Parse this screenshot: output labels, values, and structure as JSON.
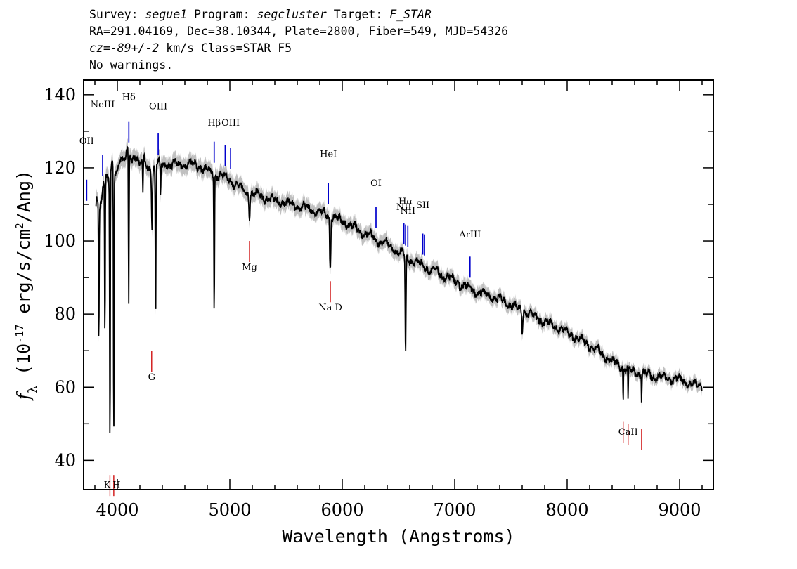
{
  "header": {
    "line1": {
      "survey_label": "Survey:",
      "survey": "segue1",
      "program_label": "Program:",
      "program": "segcluster",
      "target_label": "Target:",
      "target": "F_STAR"
    },
    "line2": "RA=291.04169, Dec=38.10344, Plate=2800, Fiber=549, MJD=54326",
    "line3": {
      "cz_label": "cz=",
      "cz_value": "-89+/-2",
      "rest": " km/s Class=STAR F5"
    },
    "line4": "No warnings."
  },
  "chart_data": {
    "type": "line",
    "xlabel": "Wavelength (Angstroms)",
    "ylabel": "f_λ (10^-17 erg/s/cm²/Ang)",
    "xlim": [
      3700,
      9300
    ],
    "ylim": [
      32,
      144
    ],
    "x_ticks": [
      4000,
      5000,
      6000,
      7000,
      8000,
      9000
    ],
    "y_ticks": [
      40,
      60,
      80,
      100,
      120,
      140
    ],
    "x_minor_step": 200,
    "y_minor_step": 10,
    "grid": false,
    "series": [
      {
        "style": "spectrum",
        "color": "#000000",
        "error_color": "#c0c0c0",
        "continuum": [
          [
            3810,
            108
          ],
          [
            3880,
            116
          ],
          [
            4000,
            121
          ],
          [
            4100,
            124
          ],
          [
            4200,
            122
          ],
          [
            4300,
            120
          ],
          [
            4400,
            121
          ],
          [
            4500,
            121
          ],
          [
            4600,
            121
          ],
          [
            4700,
            121
          ],
          [
            4800,
            119
          ],
          [
            4900,
            118
          ],
          [
            5000,
            117
          ],
          [
            5100,
            114
          ],
          [
            5200,
            113
          ],
          [
            5400,
            111
          ],
          [
            5600,
            109.5
          ],
          [
            5800,
            108
          ],
          [
            6000,
            105.5
          ],
          [
            6200,
            102
          ],
          [
            6400,
            99
          ],
          [
            6500,
            97
          ],
          [
            6600,
            95
          ],
          [
            6800,
            92
          ],
          [
            7000,
            89
          ],
          [
            7200,
            86
          ],
          [
            7400,
            84
          ],
          [
            7600,
            81
          ],
          [
            7800,
            78
          ],
          [
            8000,
            75
          ],
          [
            8200,
            71.5
          ],
          [
            8400,
            67
          ],
          [
            8600,
            64
          ],
          [
            8800,
            63
          ],
          [
            9000,
            62
          ],
          [
            9200,
            60
          ]
        ],
        "absorption": [
          [
            3835,
            71,
            4
          ],
          [
            3889,
            73,
            4
          ],
          [
            3934,
            43.5,
            4
          ],
          [
            3968,
            43.5,
            4
          ],
          [
            4101,
            81,
            4
          ],
          [
            4227,
            111,
            4
          ],
          [
            4308,
            104,
            6
          ],
          [
            4340,
            79,
            4
          ],
          [
            4384,
            112,
            4
          ],
          [
            4861,
            80.5,
            4
          ],
          [
            5175,
            107,
            6
          ],
          [
            5890,
            95.5,
            4
          ],
          [
            5896,
            95.5,
            4
          ],
          [
            6563,
            68,
            5
          ],
          [
            7600,
            75,
            5
          ],
          [
            8498,
            56,
            3
          ],
          [
            8542,
            55,
            3
          ],
          [
            8662,
            56,
            3
          ]
        ]
      }
    ],
    "emission_lines": [
      {
        "name": "OII",
        "wavelength": 3727,
        "label_y": 126.5
      },
      {
        "name": "NeIII",
        "wavelength": 3869,
        "label_y": 136.5
      },
      {
        "name": "Hδ",
        "wavelength": 4102,
        "label_y": 138.5
      },
      {
        "name": "OIII",
        "wavelength": 4363,
        "label_y": 136
      },
      {
        "name": "Hβ",
        "wavelength": 4861,
        "label_y": 131.5
      },
      {
        "name": "OIII",
        "wavelength": 4959
      },
      {
        "name": "OIII",
        "wavelength": 5007,
        "label_y": 131.5
      },
      {
        "name": "HeI",
        "wavelength": 5876,
        "label_y": 123
      },
      {
        "name": "OI",
        "wavelength": 6300,
        "label_y": 115
      },
      {
        "name": "NII",
        "wavelength": 6548,
        "label_y": 108.5
      },
      {
        "name": "Hα",
        "wavelength": 6563,
        "label_y": 110
      },
      {
        "name": "NII",
        "wavelength": 6583,
        "label_y": 107.5
      },
      {
        "name": "SII",
        "wavelength": 6716,
        "label_y": 109
      },
      {
        "name": "SII",
        "wavelength": 6731
      },
      {
        "name": "ArIII",
        "wavelength": 7136,
        "label_y": 101
      }
    ],
    "absorption_lines": [
      {
        "name": "K",
        "wavelength": 3934,
        "label_y": 32.5
      },
      {
        "name": "H",
        "wavelength": 3968,
        "label_y": 32.5
      },
      {
        "name": "G",
        "wavelength": 4305,
        "label_y": 62
      },
      {
        "name": "Mg",
        "wavelength": 5175,
        "label_y": 92
      },
      {
        "name": "Na D",
        "wavelength": 5894,
        "label_y": 81
      },
      {
        "name": "CaII",
        "wavelength": 8542,
        "label_y": 47
      }
    ],
    "line_colors": {
      "emission": "#0000cc",
      "absorption": "#cc0000"
    }
  }
}
